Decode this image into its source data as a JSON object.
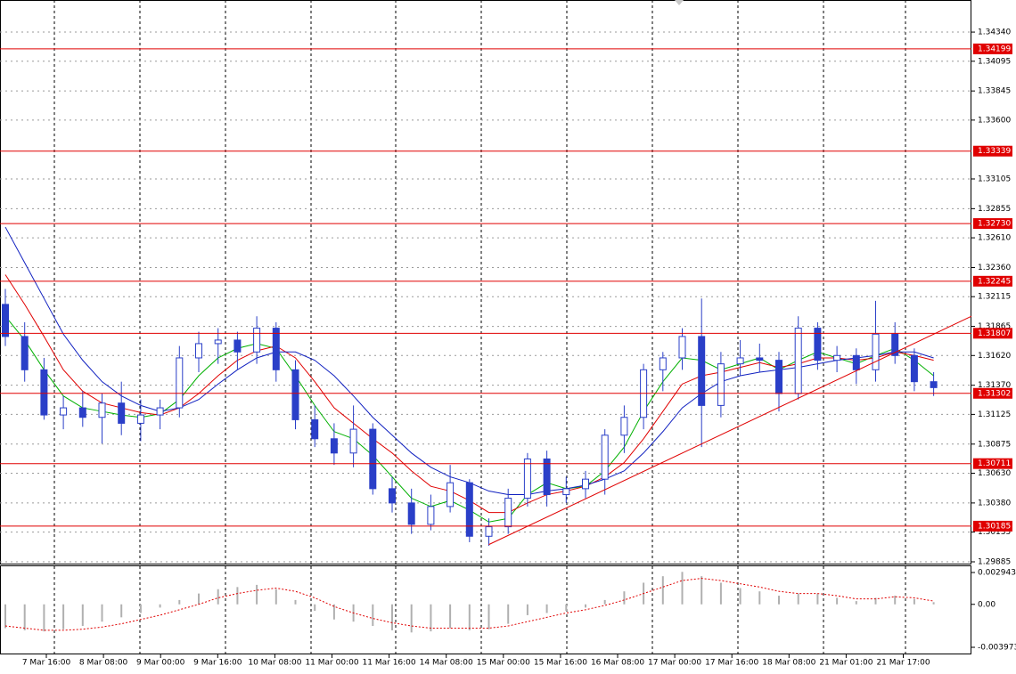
{
  "chart_data": {
    "type": "candlestick",
    "ylim": [
      1.2987,
      1.3461
    ],
    "yticks": [
      {
        "value": 1.3434,
        "label": "1.34340"
      },
      1.34095,
      1.33845,
      {
        "value": 1.336,
        "label": "1.33600"
      },
      1.33105,
      1.32855,
      {
        "value": 1.3261,
        "label": "1.32610"
      },
      {
        "value": 1.3236,
        "label": "1.32360"
      },
      1.32115,
      1.31865,
      {
        "value": 1.3162,
        "label": "1.31620"
      },
      {
        "value": 1.3137,
        "label": "1.31370"
      },
      1.31125,
      1.30875,
      {
        "value": 1.3063,
        "label": "1.30630"
      },
      {
        "value": 1.3038,
        "label": "1.30380"
      },
      1.30135,
      1.29885
    ],
    "levels": [
      1.34199,
      1.33339,
      {
        "value": 1.3273,
        "label": "1.32730"
      },
      1.32245,
      1.31807,
      1.31302,
      1.30711,
      1.30185
    ],
    "level_color": "#e00000",
    "x_labels": [
      "7 Mar 16:00",
      "8 Mar 08:00",
      "9 Mar 00:00",
      "9 Mar 16:00",
      "10 Mar 08:00",
      "11 Mar 00:00",
      "11 Mar 16:00",
      "14 Mar 08:00",
      "15 Mar 00:00",
      "15 Mar 16:00",
      "16 Mar 08:00",
      "17 Mar 00:00",
      "17 Mar 16:00",
      "18 Mar 08:00",
      "21 Mar 01:00",
      "21 Mar 17:00"
    ],
    "candle_color": "#2a3fc8",
    "open": [
      1.3205,
      1.3178,
      1.315,
      1.3112,
      1.3118,
      1.311,
      1.3122,
      1.3105,
      1.3112,
      1.3118,
      1.316,
      1.3172,
      1.3175,
      1.3165,
      1.3185,
      1.315,
      1.3108,
      1.3092,
      1.308,
      1.31,
      1.305,
      1.3038,
      1.302,
      1.3035,
      1.3055,
      1.301,
      1.3018,
      1.3042,
      1.3075,
      1.3045,
      1.305,
      1.3058,
      1.3095,
      1.311,
      1.315,
      1.316,
      1.3178,
      1.312,
      1.3155,
      1.316,
      1.3158,
      1.313,
      1.3185,
      1.3158,
      1.3162,
      1.315,
      1.318,
      1.3162,
      1.314
    ],
    "high": [
      1.3218,
      1.319,
      1.316,
      1.3128,
      1.3132,
      1.313,
      1.314,
      1.3125,
      1.3125,
      1.317,
      1.3182,
      1.3185,
      1.3182,
      1.3195,
      1.319,
      1.3158,
      1.312,
      1.3105,
      1.312,
      1.3105,
      1.306,
      1.305,
      1.3045,
      1.307,
      1.3058,
      1.3025,
      1.305,
      1.308,
      1.3082,
      1.306,
      1.3065,
      1.31,
      1.312,
      1.3155,
      1.3165,
      1.3185,
      1.321,
      1.3165,
      1.3175,
      1.3172,
      1.3165,
      1.3195,
      1.319,
      1.317,
      1.3168,
      1.3208,
      1.319,
      1.3168,
      1.3148
    ],
    "low": [
      1.317,
      1.314,
      1.3108,
      1.31,
      1.3102,
      1.3088,
      1.3095,
      1.309,
      1.31,
      1.311,
      1.3148,
      1.3155,
      1.315,
      1.3155,
      1.314,
      1.31,
      1.3085,
      1.307,
      1.3068,
      1.3045,
      1.303,
      1.3012,
      1.3015,
      1.303,
      1.3005,
      1.3002,
      1.3012,
      1.3035,
      1.3035,
      1.3038,
      1.3042,
      1.3045,
      1.308,
      1.31,
      1.3132,
      1.315,
      1.3085,
      1.311,
      1.3145,
      1.3148,
      1.3115,
      1.3125,
      1.315,
      1.3148,
      1.3138,
      1.314,
      1.3155,
      1.3132,
      1.3128
    ],
    "close": [
      1.3178,
      1.315,
      1.3112,
      1.3118,
      1.311,
      1.3122,
      1.3105,
      1.3112,
      1.3118,
      1.316,
      1.3172,
      1.3175,
      1.3165,
      1.3185,
      1.315,
      1.3108,
      1.3092,
      1.308,
      1.31,
      1.305,
      1.3038,
      1.302,
      1.3035,
      1.3055,
      1.301,
      1.3018,
      1.3042,
      1.3075,
      1.3045,
      1.305,
      1.3058,
      1.3095,
      1.311,
      1.315,
      1.316,
      1.3178,
      1.312,
      1.3155,
      1.316,
      1.3158,
      1.313,
      1.3185,
      1.3158,
      1.3162,
      1.315,
      1.318,
      1.3162,
      1.314,
      1.3135
    ],
    "series": [
      {
        "color": "#00b000",
        "values": [
          1.3195,
          1.3175,
          1.315,
          1.3128,
          1.3118,
          1.3115,
          1.3112,
          1.311,
          1.3113,
          1.3125,
          1.3145,
          1.316,
          1.3168,
          1.3172,
          1.3168,
          1.3145,
          1.312,
          1.3098,
          1.3092,
          1.3078,
          1.306,
          1.3042,
          1.3035,
          1.304,
          1.3032,
          1.3022,
          1.3025,
          1.3045,
          1.3055,
          1.305,
          1.3052,
          1.3065,
          1.3085,
          1.3115,
          1.314,
          1.316,
          1.3158,
          1.315,
          1.3155,
          1.316,
          1.315,
          1.3158,
          1.3165,
          1.316,
          1.3155,
          1.3162,
          1.3168,
          1.3158,
          1.3145
        ]
      },
      {
        "color": "#e00000",
        "values": [
          1.323,
          1.3205,
          1.3178,
          1.315,
          1.3132,
          1.3122,
          1.3118,
          1.3114,
          1.3112,
          1.3118,
          1.313,
          1.3145,
          1.3158,
          1.3166,
          1.317,
          1.316,
          1.314,
          1.3118,
          1.3105,
          1.3092,
          1.308,
          1.3065,
          1.3052,
          1.3048,
          1.304,
          1.303,
          1.303,
          1.3038,
          1.3045,
          1.3048,
          1.3052,
          1.306,
          1.3072,
          1.3092,
          1.3115,
          1.3138,
          1.3145,
          1.3148,
          1.3152,
          1.3156,
          1.3152,
          1.3155,
          1.316,
          1.316,
          1.3158,
          1.316,
          1.3165,
          1.3162,
          1.3158
        ]
      },
      {
        "color": "#1020c0",
        "values": [
          1.327,
          1.324,
          1.321,
          1.318,
          1.3158,
          1.314,
          1.3128,
          1.312,
          1.3115,
          1.3118,
          1.3125,
          1.3138,
          1.315,
          1.316,
          1.3165,
          1.3165,
          1.3158,
          1.3145,
          1.3128,
          1.311,
          1.3095,
          1.308,
          1.3068,
          1.306,
          1.3055,
          1.3048,
          1.3045,
          1.3045,
          1.3048,
          1.305,
          1.3053,
          1.3058,
          1.3065,
          1.308,
          1.3098,
          1.3118,
          1.313,
          1.314,
          1.3145,
          1.3148,
          1.315,
          1.3152,
          1.3155,
          1.3158,
          1.316,
          1.3162,
          1.3165,
          1.3165,
          1.316
        ]
      }
    ],
    "trendline": {
      "color": "#e00000",
      "values": [
        1.3003,
        1.3195
      ]
    },
    "oscillator": {
      "ylim": [
        -0.00463,
        0.00352
      ],
      "yticks": [
        0.002943,
        {
          "value": 0,
          "label": "0.00"
        },
        -0.003973
      ],
      "histogram_color": "#b0b0b0",
      "histogram": [
        -0.0022,
        -0.0024,
        -0.0025,
        -0.0023,
        -0.002,
        -0.0016,
        -0.0012,
        -0.0008,
        -0.0003,
        0.0004,
        0.001,
        0.0014,
        0.0016,
        0.0018,
        0.0014,
        0.0004,
        -0.0006,
        -0.0014,
        -0.0016,
        -0.002,
        -0.0024,
        -0.0026,
        -0.0025,
        -0.0022,
        -0.0024,
        -0.0023,
        -0.0018,
        -0.001,
        -0.0008,
        -0.0006,
        -0.0003,
        0.0004,
        0.0012,
        0.002,
        0.0026,
        0.003,
        0.0026,
        0.002,
        0.0015,
        0.0012,
        0.0008,
        0.001,
        0.001,
        0.0006,
        0.0003,
        0.0006,
        0.0008,
        0.0005,
        0.0002
      ],
      "signal_color": "#e00000",
      "signal": [
        -0.002,
        -0.0022,
        -0.0024,
        -0.0024,
        -0.0023,
        -0.0021,
        -0.0018,
        -0.0014,
        -0.001,
        -0.0005,
        0.0,
        0.0006,
        0.001,
        0.0013,
        0.0015,
        0.0012,
        0.0006,
        -0.0002,
        -0.0008,
        -0.0013,
        -0.0017,
        -0.002,
        -0.0022,
        -0.0022,
        -0.0022,
        -0.0022,
        -0.002,
        -0.0016,
        -0.0012,
        -0.0008,
        -0.0005,
        -0.0001,
        0.0004,
        0.001,
        0.0016,
        0.0022,
        0.0024,
        0.0022,
        0.0019,
        0.0016,
        0.0012,
        0.001,
        0.001,
        0.0008,
        0.0005,
        0.0005,
        0.0007,
        0.0006,
        0.0003
      ]
    }
  }
}
